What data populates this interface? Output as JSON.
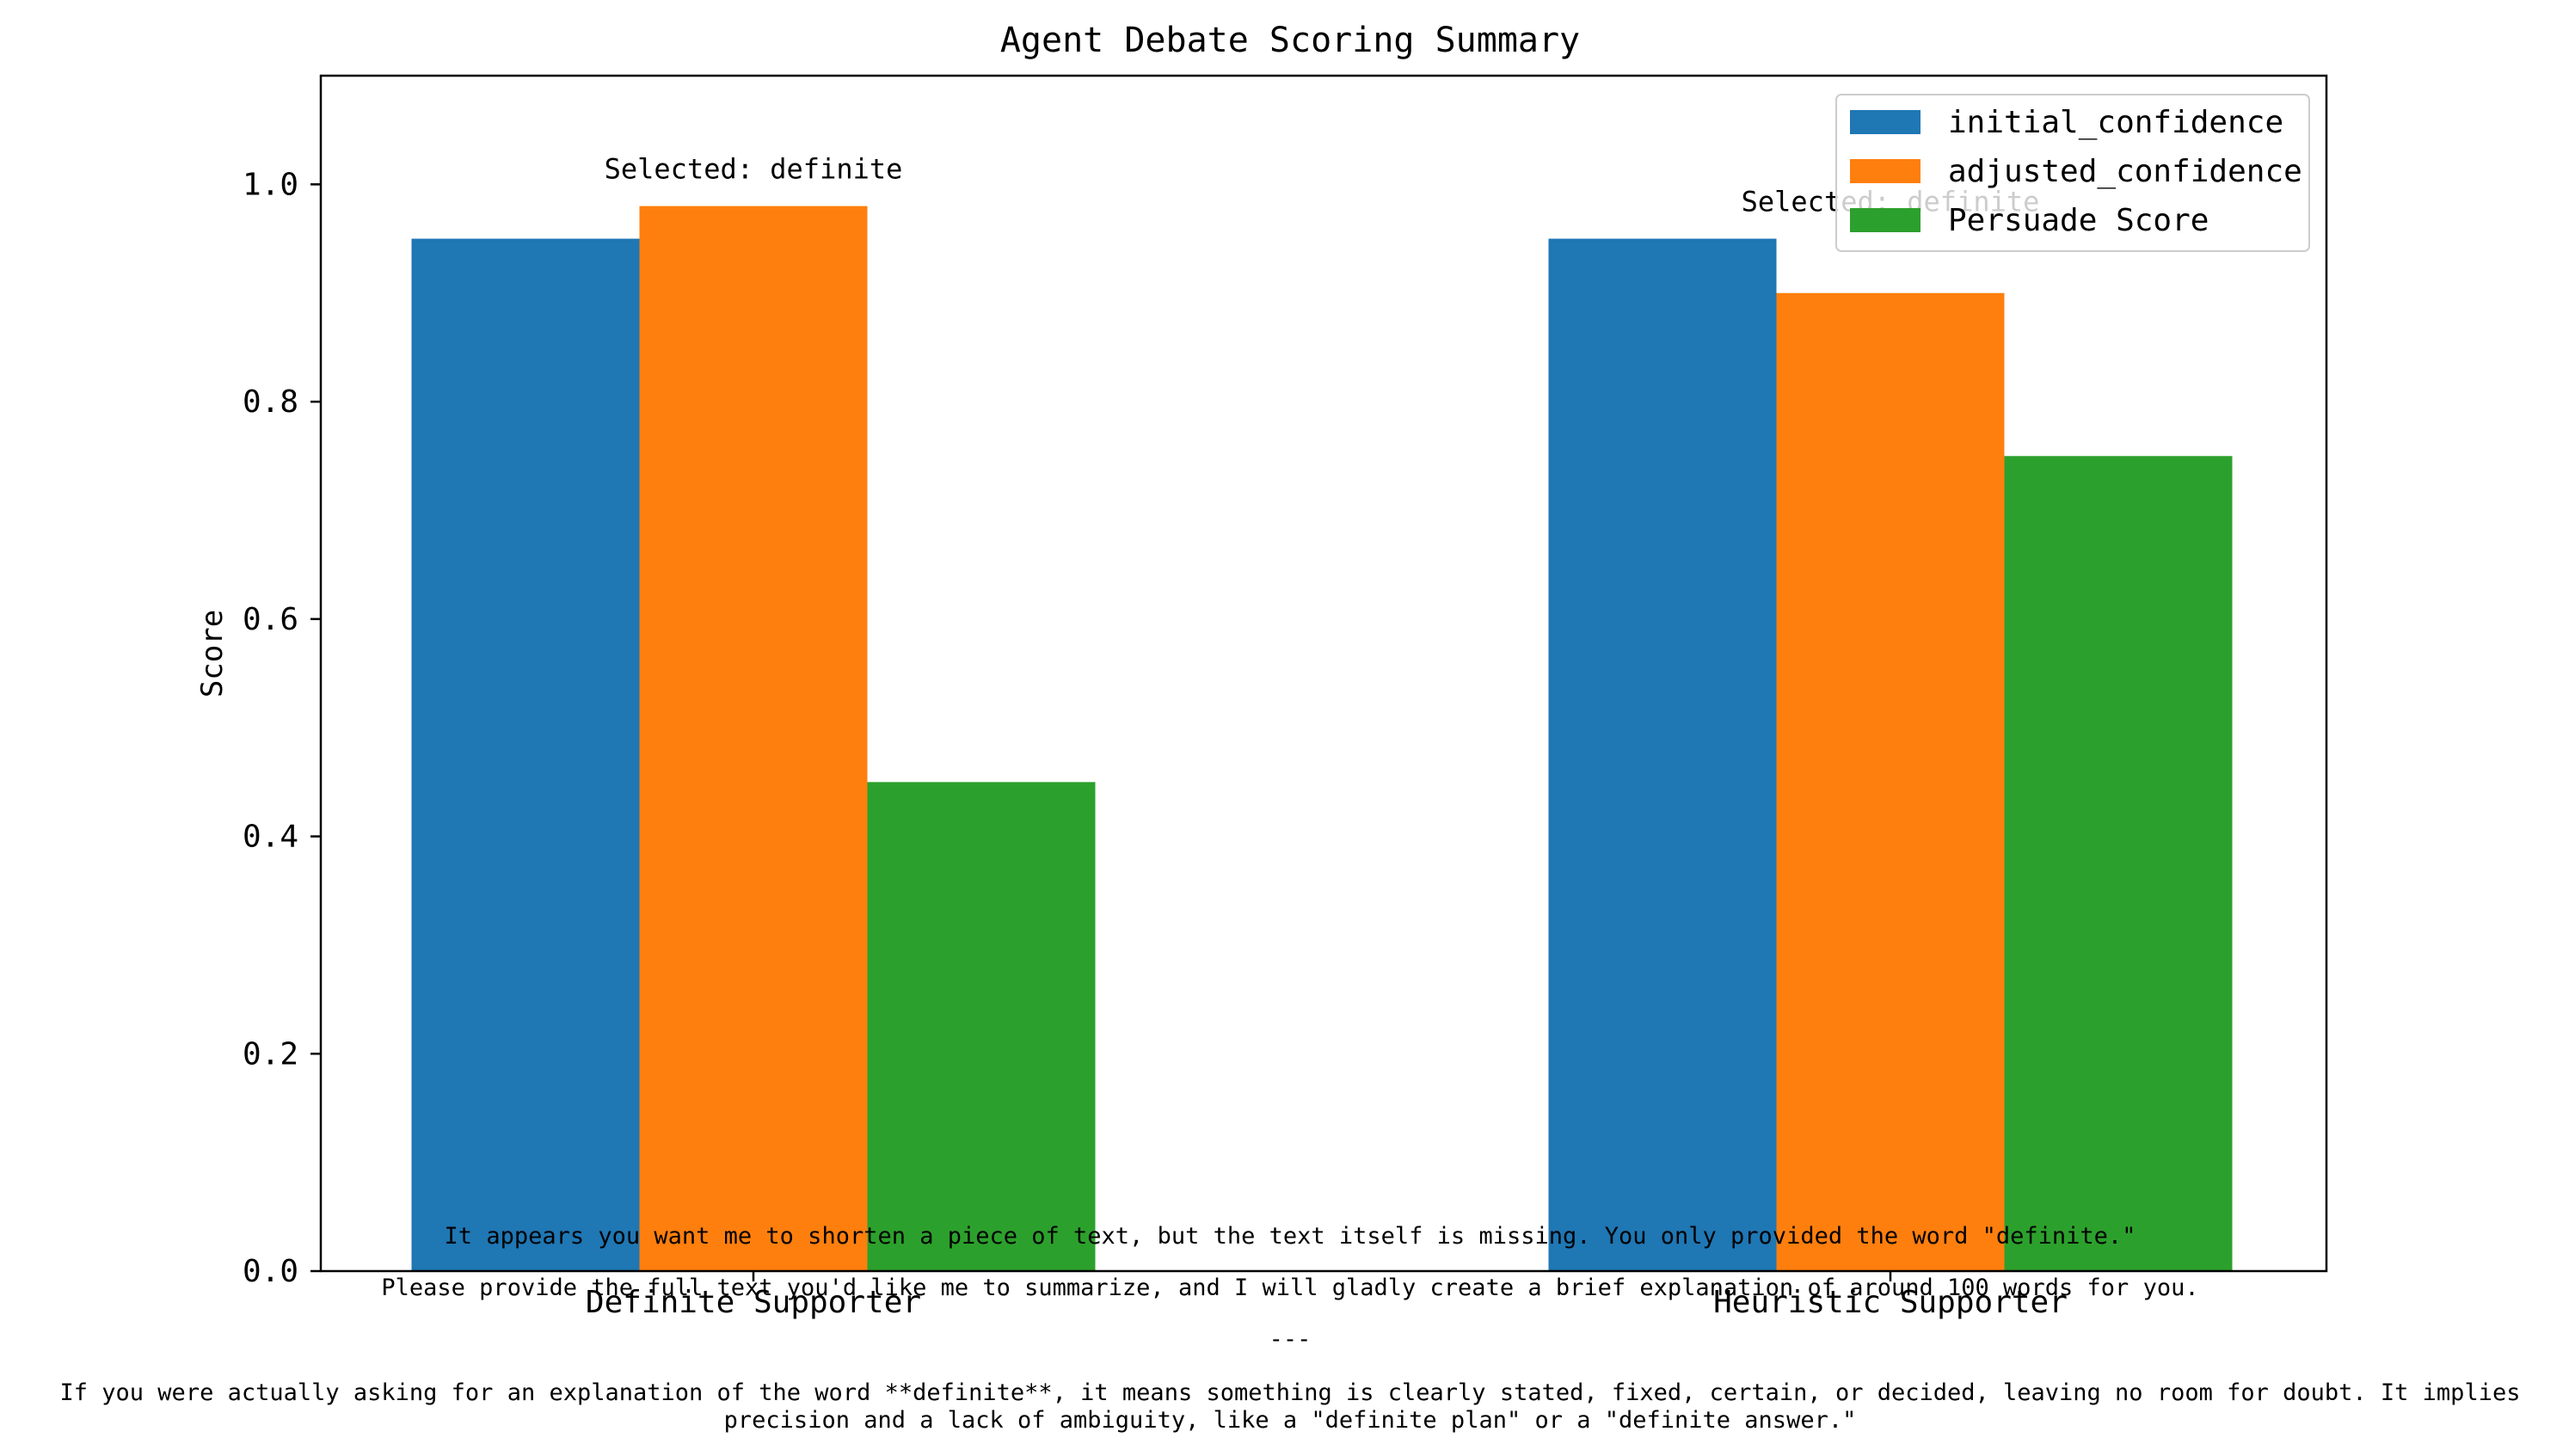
{
  "chart_data": {
    "type": "bar",
    "title": "Agent Debate Scoring Summary",
    "xlabel": "",
    "ylabel": "Score",
    "ylim": [
      0,
      1.1
    ],
    "yticks": [
      "0.0",
      "0.2",
      "0.4",
      "0.6",
      "0.8",
      "1.0"
    ],
    "categories": [
      "Definite Supporter",
      "Heuristic Supporter"
    ],
    "series": [
      {
        "name": "initial_confidence",
        "color": "#1f77b4",
        "values": [
          0.95,
          0.95
        ]
      },
      {
        "name": "adjusted_confidence",
        "color": "#ff7f0e",
        "values": [
          0.98,
          0.9
        ]
      },
      {
        "name": "Persuade Score",
        "color": "#2ca02c",
        "values": [
          0.45,
          0.75
        ]
      }
    ],
    "bar_annotations": [
      "Selected: definite",
      "Selected: definite"
    ],
    "legend_position": "top-right",
    "grid": false,
    "footnote": {
      "lines": [
        "It appears you want me to shorten a piece of text, but the text itself is missing. You only provided the word \"definite.\"",
        "Please provide the full text you'd like me to summarize, and I will gladly create a brief explanation of around 100 words for you.",
        "---",
        "If you were actually asking for an explanation of the word **definite**, it means something is clearly stated, fixed, certain, or decided, leaving no room for doubt. It implies",
        "precision and a lack of ambiguity, like a \"definite plan\" or a \"definite answer.\""
      ]
    }
  }
}
